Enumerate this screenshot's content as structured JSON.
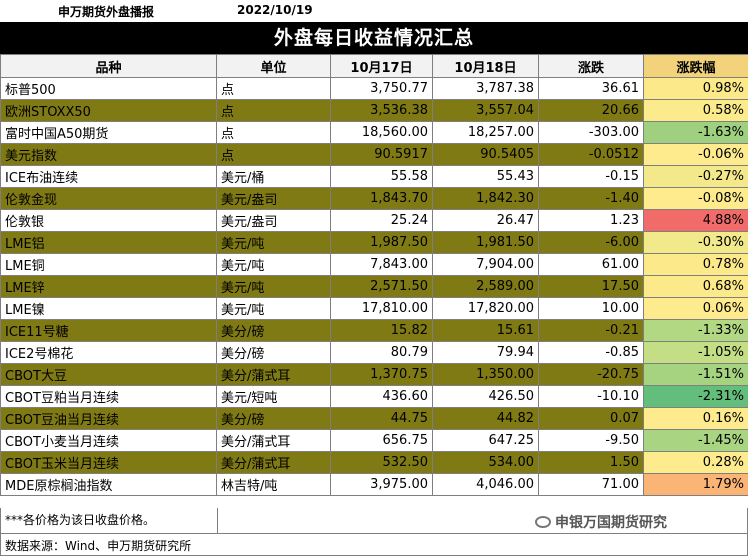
{
  "header": {
    "org": "申万期货外盘播报",
    "date": "2022/10/19"
  },
  "title": "外盘每日收益情况汇总",
  "columns": [
    "品种",
    "单位",
    "10月17日",
    "10月18日",
    "涨跌",
    "涨跌幅"
  ],
  "rows": [
    {
      "name": "标普500",
      "unit": "点",
      "d17": "3,750.77",
      "d18": "3,787.38",
      "chg": "36.61",
      "pct": "0.98%",
      "pct_color": "#fce98a",
      "olive": false
    },
    {
      "name": "欧洲STOXX50",
      "unit": "点",
      "d17": "3,536.38",
      "d18": "3,557.04",
      "chg": "20.66",
      "pct": "0.58%",
      "pct_color": "#fceb8c",
      "olive": true
    },
    {
      "name": "富时中国A50期货",
      "unit": "点",
      "d17": "18,560.00",
      "d18": "18,257.00",
      "chg": "-303.00",
      "pct": "-1.63%",
      "pct_color": "#9fd07f",
      "olive": false
    },
    {
      "name": "美元指数",
      "unit": "点",
      "d17": "90.5917",
      "d18": "90.5405",
      "chg": "-0.0512",
      "pct": "-0.06%",
      "pct_color": "#fdeb8e",
      "olive": true
    },
    {
      "name": "ICE布油连续",
      "unit": "美元/桶",
      "d17": "55.58",
      "d18": "55.43",
      "chg": "-0.15",
      "pct": "-0.27%",
      "pct_color": "#f4e98a",
      "olive": false
    },
    {
      "name": "伦敦金现",
      "unit": "美元/盎司",
      "d17": "1,843.70",
      "d18": "1,842.30",
      "chg": "-1.40",
      "pct": "-0.08%",
      "pct_color": "#fdeb8e",
      "olive": true
    },
    {
      "name": "伦敦银",
      "unit": "美元/盎司",
      "d17": "25.24",
      "d18": "26.47",
      "chg": "1.23",
      "pct": "4.88%",
      "pct_color": "#f26b6b",
      "olive": false
    },
    {
      "name": "LME铝",
      "unit": "美元/吨",
      "d17": "1,987.50",
      "d18": "1,981.50",
      "chg": "-6.00",
      "pct": "-0.30%",
      "pct_color": "#f2e98a",
      "olive": true
    },
    {
      "name": "LME铜",
      "unit": "美元/吨",
      "d17": "7,843.00",
      "d18": "7,904.00",
      "chg": "61.00",
      "pct": "0.78%",
      "pct_color": "#fce98a",
      "olive": false
    },
    {
      "name": "LME锌",
      "unit": "美元/吨",
      "d17": "2,571.50",
      "d18": "2,589.00",
      "chg": "17.50",
      "pct": "0.68%",
      "pct_color": "#fce98a",
      "olive": true
    },
    {
      "name": "LME镍",
      "unit": "美元/吨",
      "d17": "17,810.00",
      "d18": "17,820.00",
      "chg": "10.00",
      "pct": "0.06%",
      "pct_color": "#fdeb8e",
      "olive": false
    },
    {
      "name": "ICE11号糖",
      "unit": "美分/磅",
      "d17": "15.82",
      "d18": "15.61",
      "chg": "-0.21",
      "pct": "-1.33%",
      "pct_color": "#b2d884",
      "olive": true
    },
    {
      "name": "ICE2号棉花",
      "unit": "美分/磅",
      "d17": "80.79",
      "d18": "79.94",
      "chg": "-0.85",
      "pct": "-1.05%",
      "pct_color": "#c4de86",
      "olive": false
    },
    {
      "name": "CBOT大豆",
      "unit": "美分/蒲式耳",
      "d17": "1,370.75",
      "d18": "1,350.00",
      "chg": "-20.75",
      "pct": "-1.51%",
      "pct_color": "#a6d380",
      "olive": true
    },
    {
      "name": "CBOT豆粕当月连续",
      "unit": "美元/短吨",
      "d17": "436.60",
      "d18": "426.50",
      "chg": "-10.10",
      "pct": "-2.31%",
      "pct_color": "#63be7b",
      "olive": false
    },
    {
      "name": "CBOT豆油当月连续",
      "unit": "美分/磅",
      "d17": "44.75",
      "d18": "44.82",
      "chg": "0.07",
      "pct": "0.16%",
      "pct_color": "#fdeb8e",
      "olive": true
    },
    {
      "name": "CBOT小麦当月连续",
      "unit": "美分/蒲式耳",
      "d17": "656.75",
      "d18": "647.25",
      "chg": "-9.50",
      "pct": "-1.45%",
      "pct_color": "#a9d481",
      "olive": false
    },
    {
      "name": "CBOT玉米当月连续",
      "unit": "美分/蒲式耳",
      "d17": "532.50",
      "d18": "534.00",
      "chg": "1.50",
      "pct": "0.28%",
      "pct_color": "#fdeb8e",
      "olive": true
    },
    {
      "name": "MDE原棕榈油指数",
      "unit": "林吉特/吨",
      "d17": "3,975.00",
      "d18": "4,046.00",
      "chg": "71.00",
      "pct": "1.79%",
      "pct_color": "#f9b476",
      "olive": false
    }
  ],
  "footer": {
    "note": "***各价格为该日收盘价格。",
    "source": "数据来源：Wind、申万期货研究所",
    "watermark": "申银万国期货研究"
  },
  "colors": {
    "olive_row": "#807a14",
    "title_bg": "#000000",
    "header_bg": "#f2f2f2",
    "pct_header": "#f2d27a"
  }
}
